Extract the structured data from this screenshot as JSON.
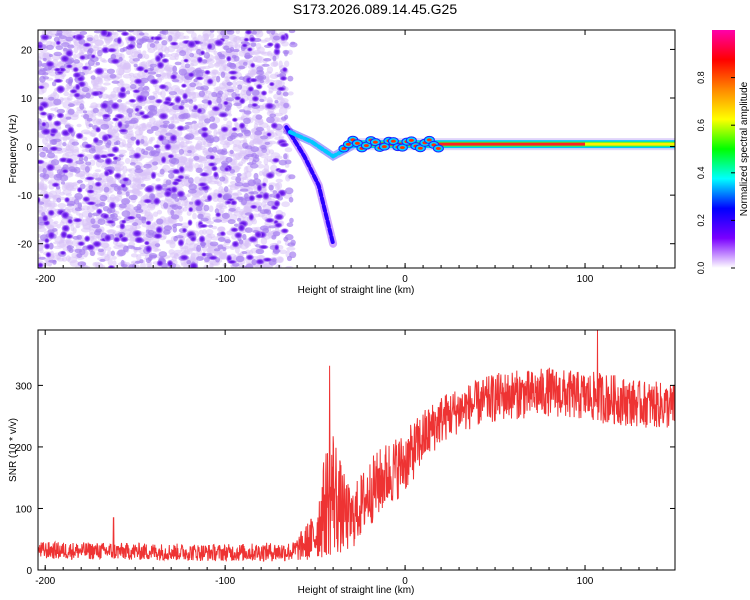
{
  "title": "S173.2026.089.14.45.G25",
  "colors": {
    "snr_line": "#ee3333",
    "axis": "#000000",
    "background": "#ffffff",
    "scatter_light": "#d9c3f7",
    "scatter_mid": "#a57ff0",
    "scatter_dark": "#6a1fe8"
  },
  "chart_data": [
    {
      "type": "heatmap",
      "title": "S173.2026.089.14.45.G25",
      "xlabel": "Height of straight line (km)",
      "ylabel": "Frequency (Hz)",
      "xlim": [
        -204,
        150
      ],
      "ylim": [
        -25,
        24
      ],
      "x_ticks": [
        -200,
        -100,
        0,
        100
      ],
      "y_ticks": [
        -20,
        -10,
        0,
        10,
        20
      ],
      "colorbar": {
        "label": "Normalized spectral amplitude",
        "range": [
          0,
          1
        ],
        "ticks": [
          0.0,
          0.2,
          0.4,
          0.6,
          0.8
        ],
        "tick_labels": [
          "0.0",
          "0.2",
          "0.4",
          "0.6",
          "0.8"
        ],
        "colormap": [
          "#ffffff",
          "#7a00ff",
          "#0000ff",
          "#00ffff",
          "#00ff00",
          "#ffff00",
          "#ff8800",
          "#ff0000",
          "#ff00aa"
        ]
      },
      "features": [
        {
          "name": "background noise",
          "x_range": [
            -204,
            -62
          ],
          "freq_range": [
            -25,
            24
          ],
          "amplitude": 0.1
        },
        {
          "name": "diagonal onset trace",
          "points": [
            [
              -66,
              4
            ],
            [
              -56,
              -2
            ],
            [
              -48,
              -8
            ],
            [
              -40,
              -20
            ]
          ],
          "amplitude": 0.3
        },
        {
          "name": "upper onset trace",
          "points": [
            [
              -64,
              3
            ],
            [
              -52,
              1
            ],
            [
              -40,
              -2
            ],
            [
              -30,
              0
            ]
          ],
          "amplitude": 0.45
        },
        {
          "name": "steady signal line",
          "x_range": [
            -30,
            150
          ],
          "freq": 0.5,
          "amplitude": 0.92
        }
      ]
    },
    {
      "type": "line",
      "xlabel": "Height of straight line (km)",
      "ylabel": "SNR (10 * v/v)",
      "xlim": [
        -204,
        150
      ],
      "ylim": [
        0,
        390
      ],
      "x_ticks": [
        -200,
        -100,
        0,
        100
      ],
      "y_ticks": [
        0,
        100,
        200,
        300
      ],
      "series": [
        {
          "name": "SNR",
          "envelope_x": [
            -204,
            -150,
            -100,
            -62,
            -50,
            -44,
            -40,
            -35,
            -30,
            -20,
            -10,
            0,
            10,
            20,
            30,
            40,
            50,
            60,
            70,
            80,
            90,
            100,
            110,
            120,
            130,
            140,
            150
          ],
          "envelope_mean": [
            32,
            30,
            28,
            30,
            55,
            110,
            130,
            95,
            80,
            125,
            155,
            175,
            215,
            245,
            260,
            270,
            280,
            285,
            285,
            290,
            285,
            282,
            280,
            275,
            270,
            268,
            265
          ],
          "noise_amplitude": [
            14,
            14,
            14,
            16,
            40,
            90,
            110,
            70,
            50,
            55,
            55,
            50,
            45,
            40,
            38,
            38,
            40,
            40,
            40,
            40,
            40,
            40,
            42,
            40,
            38,
            38,
            38
          ],
          "peaks": [
            [
              -42,
              332
            ],
            [
              107,
              392
            ],
            [
              -162,
              85
            ]
          ]
        }
      ]
    }
  ]
}
